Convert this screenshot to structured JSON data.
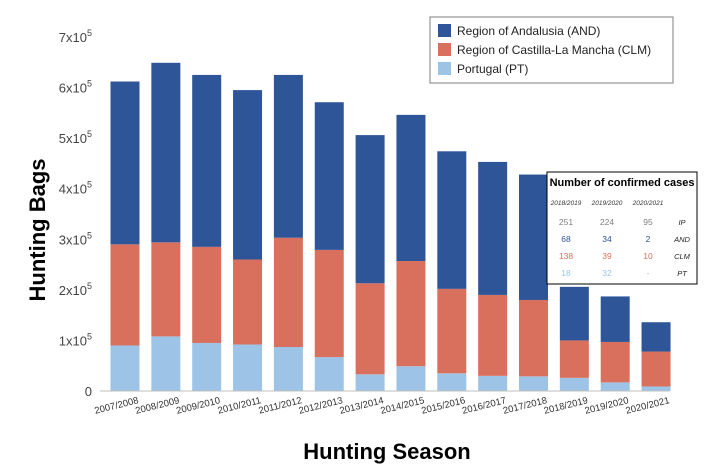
{
  "chart_data": {
    "type": "bar",
    "stacked": true,
    "xlabel": "Hunting Season",
    "ylabel": "Hunting Bags",
    "ylim": [
      0,
      700000
    ],
    "yticks": [
      {
        "value": 0,
        "label": "0",
        "exp": ""
      },
      {
        "value": 100000,
        "label": "1x10",
        "exp": "5"
      },
      {
        "value": 200000,
        "label": "2x10",
        "exp": "5"
      },
      {
        "value": 300000,
        "label": "3x10",
        "exp": "5"
      },
      {
        "value": 400000,
        "label": "4x10",
        "exp": "5"
      },
      {
        "value": 500000,
        "label": "5x10",
        "exp": "5"
      },
      {
        "value": 600000,
        "label": "6x10",
        "exp": "5"
      },
      {
        "value": 700000,
        "label": "7x10",
        "exp": "5"
      }
    ],
    "categories": [
      "2007/2008",
      "2008/2009",
      "2009/2010",
      "2010/2011",
      "2011/2012",
      "2012/2013",
      "2013/2014",
      "2014/2015",
      "2015/2016",
      "2016/2017",
      "2017/2018",
      "2018/2019",
      "2019/2020",
      "2020/2021"
    ],
    "series": [
      {
        "name": "Portugal (PT)",
        "color": "#9dc3e6",
        "values": [
          90000,
          108000,
          95000,
          92000,
          87000,
          67000,
          33000,
          49000,
          35000,
          30000,
          29000,
          26000,
          17000,
          9000
        ]
      },
      {
        "name": "Region of Castilla-La Mancha (CLM)",
        "color": "#d9705d",
        "values": [
          200000,
          186000,
          190000,
          168000,
          216000,
          212000,
          180000,
          208000,
          167000,
          160000,
          151000,
          74000,
          80000,
          69000
        ]
      },
      {
        "name": "Region of Andalusia (AND)",
        "color": "#2e5597",
        "values": [
          322000,
          355000,
          340000,
          335000,
          322000,
          292000,
          293000,
          289000,
          272000,
          263000,
          248000,
          106000,
          90000,
          58000
        ]
      }
    ],
    "legend": {
      "placement": "top-right",
      "entries": [
        {
          "label": "Region of Andalusia (AND)",
          "color": "#2e5597"
        },
        {
          "label": "Region of Castilla-La Mancha (CLM)",
          "color": "#d9705d"
        },
        {
          "label": "Portugal (PT)",
          "color": "#9dc3e6"
        }
      ]
    },
    "inset_table": {
      "title": "Number of confirmed cases",
      "columns": [
        "2018/2019",
        "2019/2020",
        "2020/2021"
      ],
      "rows": [
        {
          "label": "IP",
          "values": [
            "251",
            "224",
            "95"
          ],
          "color": "#7f7f7f"
        },
        {
          "label": "AND",
          "values": [
            "68",
            "34",
            "2"
          ],
          "color": "#2e5597"
        },
        {
          "label": "CLM",
          "values": [
            "138",
            "39",
            "10"
          ],
          "color": "#d9705d"
        },
        {
          "label": "PT",
          "values": [
            "18",
            "32",
            "-"
          ],
          "color": "#9dc3e6"
        }
      ]
    },
    "grid": false
  }
}
